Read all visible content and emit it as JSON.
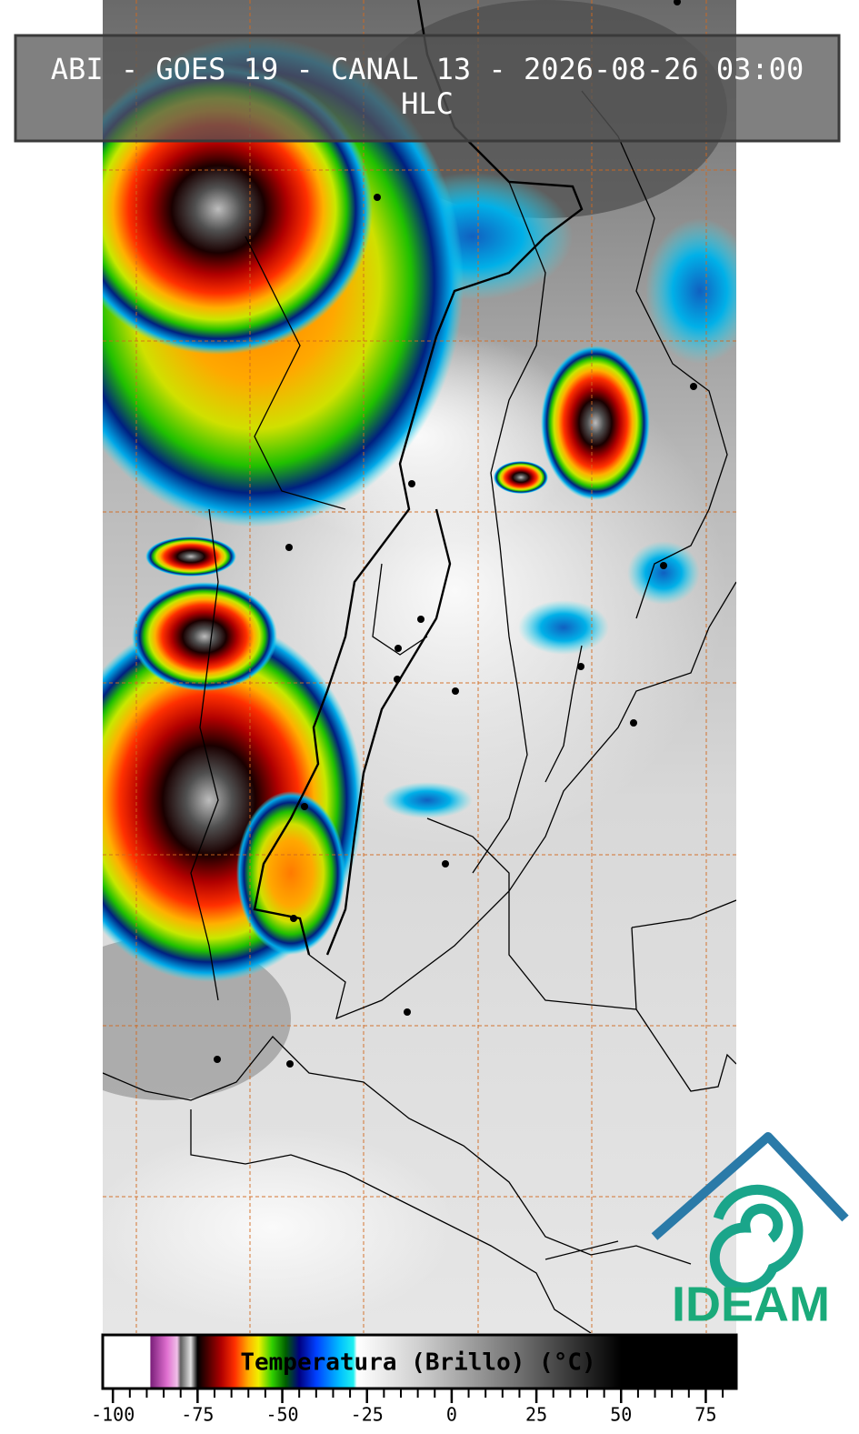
{
  "header": {
    "title": "ABI - GOES 19 - CANAL 13 - 2026-08-26 03:00",
    "subtitle": "HLC"
  },
  "logo": {
    "text": "IDEAM"
  },
  "colorbar": {
    "label": "Temperatura (Brillo) (°C)",
    "range": [
      -103,
      84
    ],
    "ticks": [
      -100,
      -75,
      -50,
      -25,
      0,
      25,
      50,
      75
    ],
    "minor_tick_step": 5,
    "stops": [
      {
        "value": -103,
        "color": "#ffffff"
      },
      {
        "value": -89,
        "color": "#ffffff"
      },
      {
        "value": -88.9,
        "color": "#7a1f7a"
      },
      {
        "value": -84,
        "color": "#e070d0"
      },
      {
        "value": -81,
        "color": "#f0c0e8"
      },
      {
        "value": -80,
        "color": "#606060"
      },
      {
        "value": -77,
        "color": "#e0e0e0"
      },
      {
        "value": -75,
        "color": "#000000"
      },
      {
        "value": -68,
        "color": "#b00000"
      },
      {
        "value": -64,
        "color": "#ff3000"
      },
      {
        "value": -60,
        "color": "#ffb000"
      },
      {
        "value": -57,
        "color": "#f0f000"
      },
      {
        "value": -53,
        "color": "#30d000"
      },
      {
        "value": -49,
        "color": "#006000"
      },
      {
        "value": -45,
        "color": "#000080"
      },
      {
        "value": -40,
        "color": "#0040ff"
      },
      {
        "value": -33,
        "color": "#00c0ff"
      },
      {
        "value": -29,
        "color": "#20f0f0"
      },
      {
        "value": -28,
        "color": "#ffffff"
      },
      {
        "value": -10,
        "color": "#d0d0d0"
      },
      {
        "value": 20,
        "color": "#707070"
      },
      {
        "value": 50,
        "color": "#000000"
      },
      {
        "value": 84,
        "color": "#000000"
      }
    ]
  }
}
